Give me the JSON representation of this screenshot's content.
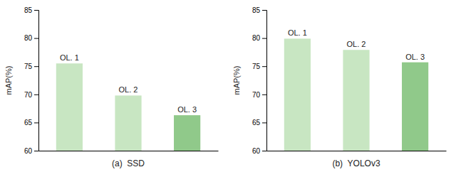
{
  "chart_data": [
    {
      "type": "bar",
      "title": "(a)  SSD",
      "ylabel": "mAP(%)",
      "categories": [
        "OL. 1",
        "OL. 2",
        "OL. 3"
      ],
      "values": [
        75.5,
        69.8,
        66.3
      ],
      "colors": [
        "#c8e6c2",
        "#c8e6c2",
        "#90c98a"
      ],
      "ylim": [
        60,
        85
      ],
      "yticks": [
        60,
        65,
        70,
        75,
        80,
        85
      ],
      "tick_labels": "y"
    },
    {
      "type": "bar",
      "title": "(b)  YOLOv3",
      "ylabel": "mAP(%)",
      "categories": [
        "OL. 1",
        "OL. 2",
        "OL. 3"
      ],
      "values": [
        79.9,
        77.9,
        75.7
      ],
      "colors": [
        "#c8e6c2",
        "#c8e6c2",
        "#90c98a"
      ],
      "ylim": [
        60,
        85
      ],
      "yticks": [
        60,
        65,
        70,
        75,
        80,
        85
      ],
      "tick_labels": "y"
    }
  ]
}
